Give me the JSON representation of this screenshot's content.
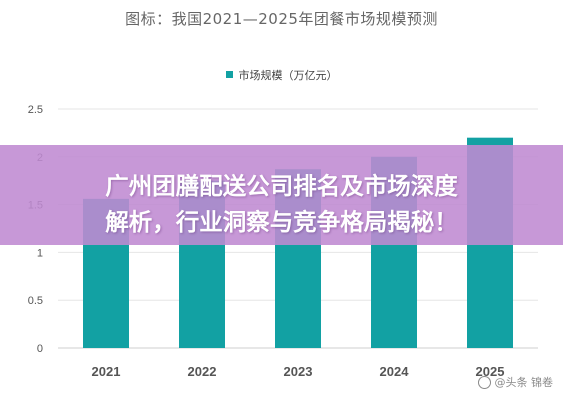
{
  "chart_data": {
    "type": "bar",
    "title": "图标：我国2021—2025年团餐市场规模预测",
    "xlabel": "",
    "ylabel": "",
    "categories": [
      "2021",
      "2022",
      "2023",
      "2024",
      "2025"
    ],
    "series": [
      {
        "name": "市场规模（万亿元）",
        "values": [
          1.56,
          1.75,
          1.87,
          2.0,
          2.2
        ]
      }
    ],
    "ylim": [
      0,
      2.5
    ],
    "yticks": [
      "0",
      "0.5",
      "1",
      "1.5",
      "2",
      "2.5"
    ],
    "grid": true,
    "legend_position": "top-center",
    "bar_color": "#12a1a3"
  },
  "banner": {
    "line1": "广州团膳配送公司排名及市场深度",
    "line2": "解析，行业洞察与竞争格局揭秘！"
  },
  "watermark": {
    "text": "@头条 锦卷",
    "icon": "camera-icon"
  }
}
